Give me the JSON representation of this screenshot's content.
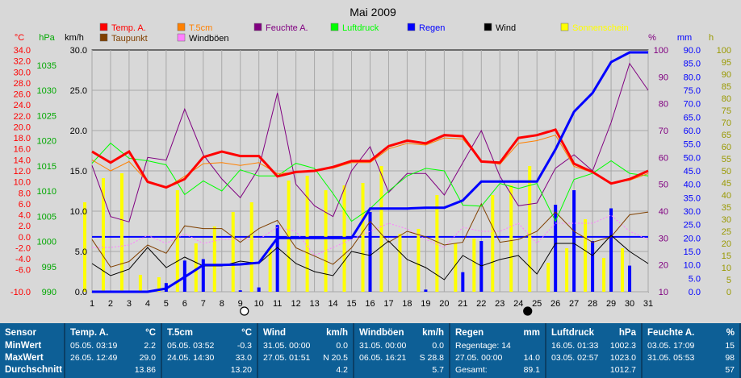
{
  "chart_data": {
    "type": "line",
    "title": "Mai 2009",
    "x": [
      1,
      2,
      3,
      4,
      5,
      6,
      7,
      8,
      9,
      10,
      11,
      12,
      13,
      14,
      15,
      16,
      17,
      18,
      19,
      20,
      21,
      22,
      23,
      24,
      25,
      26,
      27,
      28,
      29,
      30,
      31
    ],
    "legend": [
      "Temp. A.",
      "T.5cm",
      "Feuchte A.",
      "Luftdruck",
      "Regen",
      "Wind",
      "Sonnenschein",
      "Taupunkt",
      "Windböen"
    ],
    "axes": {
      "temp_c": {
        "label": "°C",
        "ticks": [
          "34.0",
          "32.0",
          "30.0",
          "28.0",
          "26.0",
          "24.0",
          "22.0",
          "20.0",
          "18.0",
          "16.0",
          "14.0",
          "12.0",
          "10.0",
          "8.0",
          "6.0",
          "4.0",
          "2.0",
          "0.0",
          "-2.0",
          "-4.0",
          "-6.0",
          "-10.0"
        ],
        "range": [
          -10,
          34
        ]
      },
      "pressure_hpa": {
        "label": "hPa",
        "ticks": [
          "1035",
          "1030",
          "1025",
          "1020",
          "1015",
          "1010",
          "1005",
          "1000",
          "995",
          "990"
        ],
        "range": [
          990,
          1038
        ]
      },
      "wind_kmh": {
        "label": "km/h",
        "ticks": [
          "30.0",
          "25.0",
          "20.0",
          "15.0",
          "10.0",
          "5.0",
          "0.0"
        ],
        "range": [
          0,
          30
        ]
      },
      "humidity_pct": {
        "label": "%",
        "ticks": [
          "100",
          "90",
          "80",
          "70",
          "60",
          "50",
          "40",
          "30",
          "20",
          "10"
        ],
        "range": [
          10,
          100
        ]
      },
      "rain_mm": {
        "label": "mm",
        "ticks": [
          "90.0",
          "85.0",
          "80.0",
          "75.0",
          "70.0",
          "65.0",
          "60.0",
          "55.0",
          "50.0",
          "45.0",
          "40.0",
          "35.0",
          "30.0",
          "25.0",
          "20.0",
          "15.0",
          "10.0",
          "5.0",
          "0.0"
        ],
        "range": [
          0,
          90
        ]
      },
      "sun_h": {
        "label": "h",
        "ticks": [
          "100",
          "95",
          "90",
          "85",
          "80",
          "75",
          "70",
          "65",
          "60",
          "55",
          "50",
          "45",
          "40",
          "35",
          "30",
          "25",
          "20",
          "15",
          "10",
          "5",
          "0"
        ],
        "range": [
          0,
          100
        ]
      }
    },
    "series": [
      {
        "name": "Temp. A.",
        "color": "#ff0000",
        "axis": "temp_c",
        "values": [
          15.5,
          13.5,
          15.5,
          10.0,
          9.0,
          10.5,
          14.5,
          15.5,
          14.7,
          14.7,
          11.0,
          11.8,
          12.0,
          12.7,
          13.8,
          13.8,
          16.5,
          17.5,
          17.0,
          18.5,
          18.3,
          13.7,
          13.5,
          18.0,
          18.5,
          19.5,
          13.3,
          11.8,
          9.7,
          10.5,
          12.0
        ]
      },
      {
        "name": "T.5cm",
        "color": "#ff8000",
        "axis": "temp_c",
        "values": [
          14.0,
          12.0,
          13.7,
          10.0,
          9.0,
          11.0,
          13.3,
          13.5,
          13.0,
          13.5,
          11.5,
          11.7,
          12.0,
          12.5,
          13.5,
          13.5,
          16.0,
          17.0,
          16.7,
          18.0,
          17.8,
          13.8,
          13.2,
          17.0,
          17.5,
          18.5,
          12.8,
          11.7,
          9.8,
          10.3,
          11.5
        ]
      },
      {
        "name": "Feuchte A.",
        "color": "#800080",
        "axis": "humidity_pct",
        "values": [
          57,
          38,
          36,
          60,
          59,
          78,
          61,
          52,
          45,
          56,
          84,
          50,
          42,
          38,
          55,
          64,
          47,
          54,
          54,
          46,
          58,
          70,
          53,
          42,
          43,
          56,
          61,
          55,
          73,
          95,
          85
        ]
      },
      {
        "name": "Luftdruck",
        "color": "#00ff00",
        "axis": "pressure_hpa",
        "values": [
          1015.5,
          1019.5,
          1016.5,
          1016.0,
          1015.2,
          1009.3,
          1012.0,
          1010.0,
          1014.2,
          1013.0,
          1013.0,
          1015.5,
          1014.5,
          1009.5,
          1004.0,
          1006.5,
          1010.0,
          1013.0,
          1014.5,
          1014.0,
          1007.2,
          1007.0,
          1011.5,
          1010.5,
          1011.5,
          1004.0,
          1012.3,
          1013.5,
          1016.0,
          1013.5,
          1013.0
        ]
      },
      {
        "name": "Regen",
        "color": "#0000ff",
        "axis": "rain_mm",
        "values": [
          0,
          0,
          0,
          0,
          1.2,
          5.5,
          10.0,
          10.0,
          10.2,
          10.8,
          20.0,
          20.0,
          20.0,
          20.0,
          20.0,
          31.0,
          31.0,
          31.0,
          31.3,
          31.3,
          34.0,
          41.0,
          41.0,
          41.0,
          41.0,
          53.0,
          67.0,
          74.0,
          85.5,
          89.1,
          89.1
        ]
      },
      {
        "name": "Wind",
        "color": "#000000",
        "axis": "wind_kmh",
        "values": [
          3.5,
          2.0,
          2.8,
          5.5,
          3.0,
          4.3,
          3.2,
          3.2,
          3.8,
          3.5,
          5.5,
          3.5,
          2.5,
          2.0,
          5.0,
          4.5,
          6.3,
          4.0,
          3.0,
          1.5,
          4.5,
          3.2,
          4.0,
          4.5,
          2.2,
          6.0,
          6.0,
          4.5,
          7.0,
          5.0,
          3.5
        ]
      },
      {
        "name": "Windböen",
        "color": "#ff80ff",
        "axis": "wind_kmh",
        "values": [
          5.5,
          5.5,
          5.8,
          7.0,
          6.0,
          7.2,
          6.0,
          6.5,
          6.5,
          6.5,
          8.0,
          7.5,
          4.5,
          5.5,
          6.5,
          7.5,
          8.5,
          7.8,
          6.5,
          5.5,
          8.0,
          7.5,
          7.5,
          8.5,
          6.0,
          8.5,
          8.5,
          8.5,
          9.5,
          7.5,
          6.5
        ]
      },
      {
        "name": "Taupunkt",
        "color": "#804000",
        "axis": "temp_c",
        "values": [
          -0.5,
          -5.5,
          -4.5,
          -1.5,
          -3.0,
          2.0,
          1.5,
          1.5,
          -1.0,
          1.5,
          3.0,
          -2.0,
          -3.5,
          -5.0,
          -2.0,
          2.8,
          -1.0,
          1.0,
          0.0,
          -1.5,
          -1.0,
          6.0,
          -1.0,
          -0.5,
          1.0,
          4.5,
          1.0,
          -1.0,
          0.0,
          4.0,
          4.5
        ]
      },
      {
        "name": "Sonnenschein",
        "color": "#ffff00",
        "axis": "sun_h",
        "values": [
          37,
          47,
          49,
          7,
          6,
          42,
          20,
          27,
          33,
          37,
          18,
          46,
          48,
          42,
          44,
          45,
          52,
          24,
          26,
          40,
          20,
          22,
          40,
          44,
          52,
          12,
          18,
          30,
          14,
          18,
          0
        ]
      }
    ],
    "markers": [
      {
        "day": 9,
        "symbol": "open circle"
      },
      {
        "day": 24.5,
        "symbol": "filled circle"
      }
    ],
    "grid": true
  },
  "stats": {
    "row_labels": {
      "sensor": "Sensor",
      "min": "MinWert",
      "max": "MaxWert",
      "avg": "Durchschnitt"
    },
    "columns": [
      {
        "title": "Temp. A.",
        "unit": "°C",
        "min_label": "05.05.  03:19",
        "min_val": "2.2",
        "max_label": "26.05.  12:49",
        "max_val": "29.0",
        "avg_label": "",
        "avg_val": "13.86"
      },
      {
        "title": "T.5cm",
        "unit": "°C",
        "min_label": "05.05.  03:52",
        "min_val": "-0.3",
        "max_label": "24.05.  14:30",
        "max_val": "33.0",
        "avg_label": "",
        "avg_val": "13.20"
      },
      {
        "title": "Wind",
        "unit": "km/h",
        "min_label": "31.05.  00:00",
        "min_val": "0.0",
        "max_label": "27.05.  01:51",
        "max_val": "N 20.5",
        "avg_label": "",
        "avg_val": "4.2"
      },
      {
        "title": "Windböen",
        "unit": "km/h",
        "min_label": "31.05.  00:00",
        "min_val": "0.0",
        "max_label": "06.05.  16:21",
        "max_val": "S 28.8",
        "avg_label": "",
        "avg_val": "5.7"
      },
      {
        "title": "Regen",
        "unit": "mm",
        "min_label": "Regentage: 14",
        "min_val": "",
        "max_label": "27.05.  00:00",
        "max_val": "14.0",
        "avg_label": "Gesamt:",
        "avg_val": "89.1"
      },
      {
        "title": "Luftdruck",
        "unit": "hPa",
        "min_label": "16.05.  01:33",
        "min_val": "1002.3",
        "max_label": "03.05.  02:57",
        "max_val": "1023.0",
        "avg_label": "",
        "avg_val": "1012.7"
      },
      {
        "title": "Feuchte A.",
        "unit": "%",
        "min_label": "03.05.  17:09",
        "min_val": "15",
        "max_label": "31.05.  05:53",
        "max_val": "98",
        "avg_label": "",
        "avg_val": "57"
      }
    ]
  }
}
